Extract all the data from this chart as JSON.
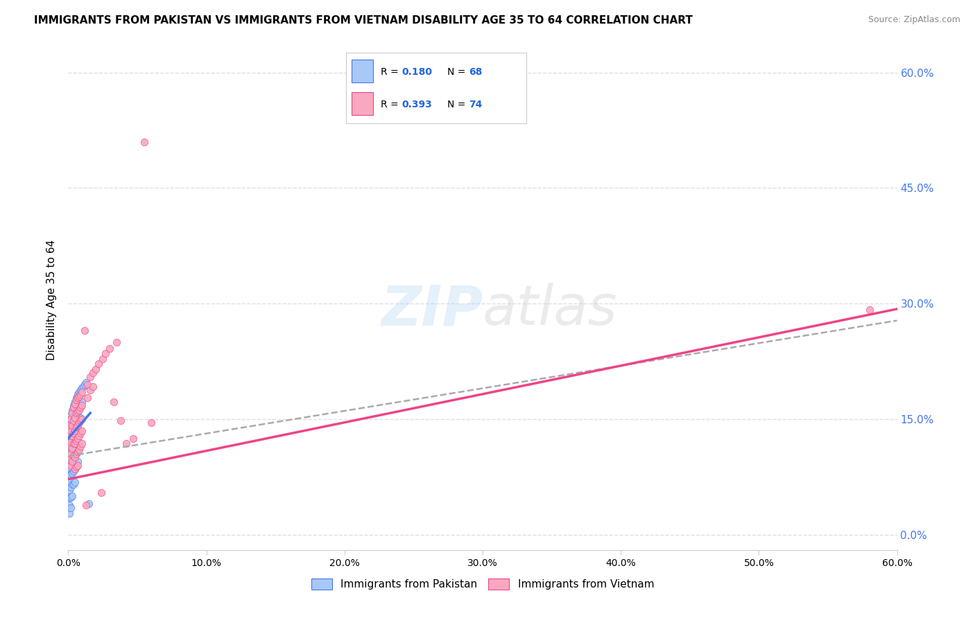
{
  "title": "IMMIGRANTS FROM PAKISTAN VS IMMIGRANTS FROM VIETNAM DISABILITY AGE 35 TO 64 CORRELATION CHART",
  "source": "Source: ZipAtlas.com",
  "ylabel": "Disability Age 35 to 64",
  "r_pakistan": 0.18,
  "n_pakistan": 68,
  "r_vietnam": 0.393,
  "n_vietnam": 74,
  "color_pakistan": "#a8c8f8",
  "color_vietnam": "#f9a8c0",
  "color_pakistan_line": "#4477ee",
  "color_vietnam_line": "#ee4488",
  "color_regression_text": "#2266dd",
  "background_color": "#ffffff",
  "grid_color": "#ddddee",
  "xmin": 0.0,
  "xmax": 0.6,
  "ymin": -0.02,
  "ymax": 0.63,
  "pakistan_points": [
    [
      0.001,
      0.148
    ],
    [
      0.001,
      0.132
    ],
    [
      0.001,
      0.118
    ],
    [
      0.001,
      0.098
    ],
    [
      0.001,
      0.088
    ],
    [
      0.001,
      0.078
    ],
    [
      0.001,
      0.068
    ],
    [
      0.001,
      0.058
    ],
    [
      0.001,
      0.048
    ],
    [
      0.001,
      0.038
    ],
    [
      0.001,
      0.028
    ],
    [
      0.002,
      0.155
    ],
    [
      0.002,
      0.138
    ],
    [
      0.002,
      0.122
    ],
    [
      0.002,
      0.108
    ],
    [
      0.002,
      0.092
    ],
    [
      0.002,
      0.078
    ],
    [
      0.002,
      0.062
    ],
    [
      0.002,
      0.048
    ],
    [
      0.002,
      0.035
    ],
    [
      0.003,
      0.162
    ],
    [
      0.003,
      0.145
    ],
    [
      0.003,
      0.128
    ],
    [
      0.003,
      0.112
    ],
    [
      0.003,
      0.095
    ],
    [
      0.003,
      0.08
    ],
    [
      0.003,
      0.065
    ],
    [
      0.003,
      0.05
    ],
    [
      0.004,
      0.168
    ],
    [
      0.004,
      0.15
    ],
    [
      0.004,
      0.132
    ],
    [
      0.004,
      0.115
    ],
    [
      0.004,
      0.098
    ],
    [
      0.004,
      0.082
    ],
    [
      0.004,
      0.065
    ],
    [
      0.005,
      0.172
    ],
    [
      0.005,
      0.155
    ],
    [
      0.005,
      0.138
    ],
    [
      0.005,
      0.12
    ],
    [
      0.005,
      0.102
    ],
    [
      0.005,
      0.085
    ],
    [
      0.005,
      0.068
    ],
    [
      0.006,
      0.178
    ],
    [
      0.006,
      0.16
    ],
    [
      0.006,
      0.142
    ],
    [
      0.006,
      0.125
    ],
    [
      0.006,
      0.108
    ],
    [
      0.006,
      0.09
    ],
    [
      0.007,
      0.182
    ],
    [
      0.007,
      0.165
    ],
    [
      0.007,
      0.148
    ],
    [
      0.007,
      0.13
    ],
    [
      0.007,
      0.112
    ],
    [
      0.007,
      0.095
    ],
    [
      0.008,
      0.185
    ],
    [
      0.008,
      0.168
    ],
    [
      0.008,
      0.15
    ],
    [
      0.008,
      0.132
    ],
    [
      0.008,
      0.115
    ],
    [
      0.009,
      0.188
    ],
    [
      0.009,
      0.17
    ],
    [
      0.009,
      0.152
    ],
    [
      0.01,
      0.19
    ],
    [
      0.01,
      0.172
    ],
    [
      0.011,
      0.192
    ],
    [
      0.012,
      0.195
    ],
    [
      0.013,
      0.198
    ],
    [
      0.015,
      0.04
    ]
  ],
  "vietnam_points": [
    [
      0.001,
      0.142
    ],
    [
      0.001,
      0.128
    ],
    [
      0.001,
      0.115
    ],
    [
      0.001,
      0.098
    ],
    [
      0.002,
      0.15
    ],
    [
      0.002,
      0.135
    ],
    [
      0.002,
      0.12
    ],
    [
      0.002,
      0.105
    ],
    [
      0.002,
      0.09
    ],
    [
      0.003,
      0.158
    ],
    [
      0.003,
      0.142
    ],
    [
      0.003,
      0.128
    ],
    [
      0.003,
      0.112
    ],
    [
      0.003,
      0.095
    ],
    [
      0.004,
      0.165
    ],
    [
      0.004,
      0.148
    ],
    [
      0.004,
      0.132
    ],
    [
      0.004,
      0.118
    ],
    [
      0.004,
      0.102
    ],
    [
      0.005,
      0.17
    ],
    [
      0.005,
      0.152
    ],
    [
      0.005,
      0.135
    ],
    [
      0.005,
      0.118
    ],
    [
      0.005,
      0.1
    ],
    [
      0.005,
      0.085
    ],
    [
      0.006,
      0.175
    ],
    [
      0.006,
      0.158
    ],
    [
      0.006,
      0.14
    ],
    [
      0.006,
      0.122
    ],
    [
      0.006,
      0.105
    ],
    [
      0.006,
      0.088
    ],
    [
      0.007,
      0.178
    ],
    [
      0.007,
      0.16
    ],
    [
      0.007,
      0.142
    ],
    [
      0.007,
      0.125
    ],
    [
      0.007,
      0.108
    ],
    [
      0.007,
      0.09
    ],
    [
      0.008,
      0.18
    ],
    [
      0.008,
      0.162
    ],
    [
      0.008,
      0.145
    ],
    [
      0.008,
      0.128
    ],
    [
      0.008,
      0.11
    ],
    [
      0.009,
      0.182
    ],
    [
      0.009,
      0.165
    ],
    [
      0.009,
      0.148
    ],
    [
      0.009,
      0.132
    ],
    [
      0.009,
      0.115
    ],
    [
      0.01,
      0.185
    ],
    [
      0.01,
      0.168
    ],
    [
      0.01,
      0.15
    ],
    [
      0.01,
      0.135
    ],
    [
      0.01,
      0.118
    ],
    [
      0.012,
      0.265
    ],
    [
      0.013,
      0.038
    ],
    [
      0.014,
      0.195
    ],
    [
      0.014,
      0.178
    ],
    [
      0.016,
      0.205
    ],
    [
      0.016,
      0.188
    ],
    [
      0.018,
      0.21
    ],
    [
      0.018,
      0.192
    ],
    [
      0.02,
      0.215
    ],
    [
      0.022,
      0.222
    ],
    [
      0.024,
      0.055
    ],
    [
      0.025,
      0.228
    ],
    [
      0.027,
      0.235
    ],
    [
      0.03,
      0.242
    ],
    [
      0.033,
      0.172
    ],
    [
      0.035,
      0.25
    ],
    [
      0.038,
      0.148
    ],
    [
      0.042,
      0.118
    ],
    [
      0.047,
      0.125
    ],
    [
      0.055,
      0.51
    ],
    [
      0.06,
      0.145
    ],
    [
      0.58,
      0.292
    ]
  ]
}
